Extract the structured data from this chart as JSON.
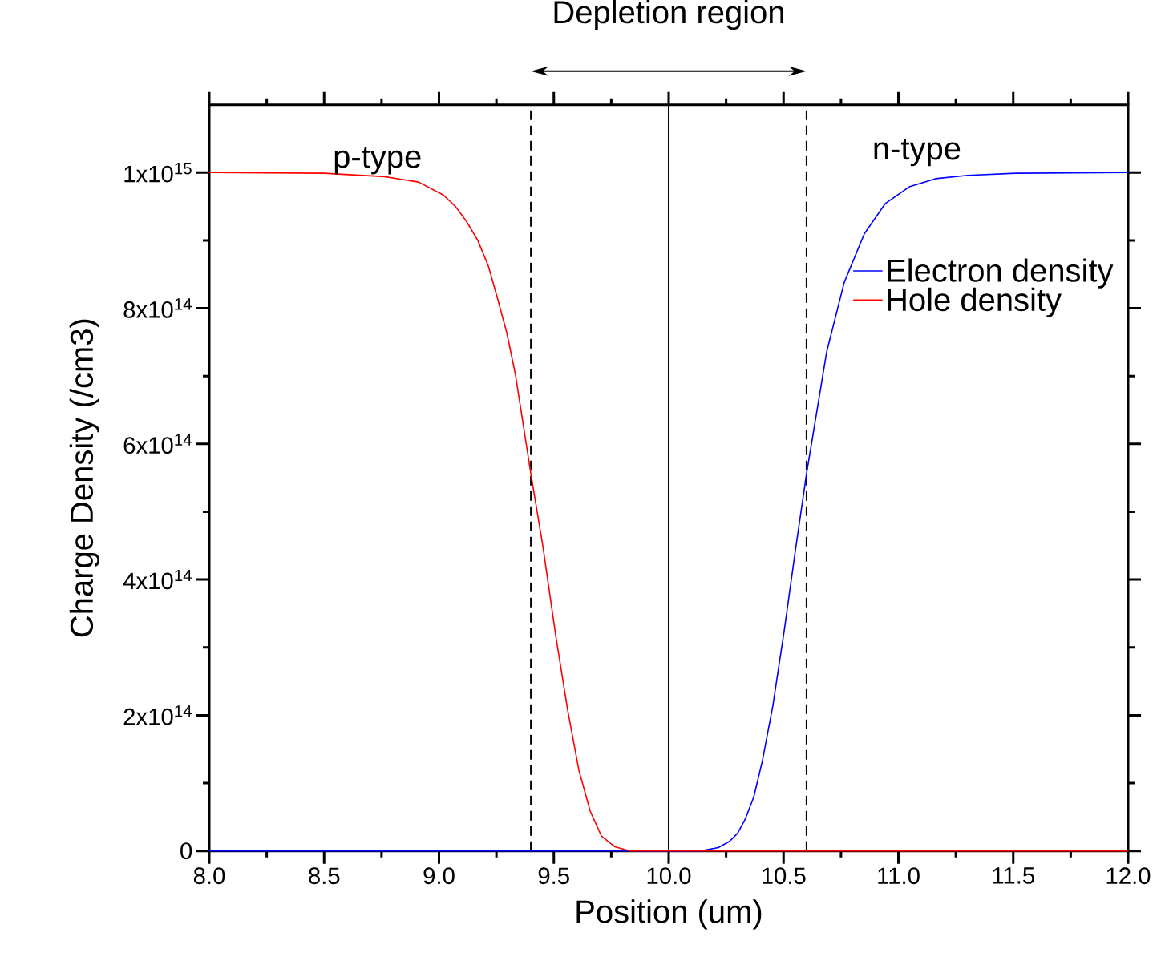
{
  "chart_data": {
    "type": "line",
    "xlabel": "Position (um)",
    "ylabel": "Charge Density (/cm3)",
    "xlim": [
      8.0,
      12.0
    ],
    "ylim": [
      0,
      1100000000000000.0
    ],
    "xticks": [
      {
        "value": 8.0,
        "label": "8.0"
      },
      {
        "value": 8.5,
        "label": "8.5"
      },
      {
        "value": 9.0,
        "label": "9.0"
      },
      {
        "value": 9.5,
        "label": "9.5"
      },
      {
        "value": 10.0,
        "label": "10.0"
      },
      {
        "value": 10.5,
        "label": "10.5"
      },
      {
        "value": 11.0,
        "label": "11.0"
      },
      {
        "value": 11.5,
        "label": "11.5"
      },
      {
        "value": 12.0,
        "label": "12.0"
      }
    ],
    "yticks": [
      0,
      {
        "value": 200000000000000.0,
        "label": "2x10$^{14}$"
      },
      {
        "value": 400000000000000.0,
        "label": "4x10$^{14}$"
      },
      {
        "value": 600000000000000.0,
        "label": "6x10$^{14}$"
      },
      {
        "value": 800000000000000.0,
        "label": "8x10$^{14}$"
      },
      {
        "value": 1000000000000000.0,
        "label": "1x10$^{15}$"
      }
    ],
    "series": [
      {
        "name": "Electron density",
        "color": "#0000ff",
        "x": [
          8.0,
          9.0,
          10.0,
          10.14,
          10.216,
          10.265,
          10.3,
          10.332,
          10.37,
          10.408,
          10.454,
          10.503,
          10.552,
          10.6,
          10.688,
          10.764,
          10.852,
          10.942,
          11.047,
          11.162,
          11.302,
          11.511,
          12.0
        ],
        "values": [
          0,
          0,
          0,
          0,
          5000000000000.0,
          14000000000000.0,
          26000000000000.0,
          46000000000000.0,
          79000000000000.0,
          133000000000000.0,
          215000000000000.0,
          325000000000000.0,
          444000000000000.0,
          556000000000000.0,
          736000000000000.0,
          838000000000000.0,
          910000000000000.0,
          954000000000000.0,
          979000000000000.0,
          991000000000000.0,
          996000000000000.0,
          999000000000000.0,
          1000000000000000.0
        ]
      },
      {
        "name": "Hole density",
        "color": "#ff0000",
        "x": [
          8.0,
          8.5,
          8.764,
          8.911,
          9.019,
          9.072,
          9.12,
          9.169,
          9.215,
          9.253,
          9.295,
          9.333,
          9.4,
          9.452,
          9.508,
          9.56,
          9.609,
          9.658,
          9.707,
          9.766,
          9.832,
          10.0,
          11.0,
          12.0
        ],
        "values": [
          1000000000000000.0,
          999000000000000.0,
          994000000000000.0,
          986000000000000.0,
          967000000000000.0,
          950000000000000.0,
          928000000000000.0,
          900000000000000.0,
          862000000000000.0,
          817000000000000.0,
          764000000000000.0,
          702000000000000.0,
          556000000000000.0,
          450000000000000.0,
          318000000000000.0,
          208000000000000.0,
          119000000000000.0,
          59000000000000.0,
          22000000000000.0,
          6000000000000.0,
          0,
          0,
          0,
          0
        ]
      }
    ],
    "ref_lines": [
      {
        "axis": "x",
        "value": 9.4,
        "line_style": "dashed",
        "color": "#000000"
      },
      {
        "axis": "x",
        "value": 10.0,
        "line_style": "solid",
        "color": "#000000"
      },
      {
        "axis": "x",
        "value": 10.6,
        "line_style": "dashed",
        "color": "#000000"
      }
    ],
    "annotations": [
      "Depletion region",
      "p-type",
      "n-type"
    ],
    "legend": "top right",
    "line_style": "solid",
    "marker": "none"
  }
}
